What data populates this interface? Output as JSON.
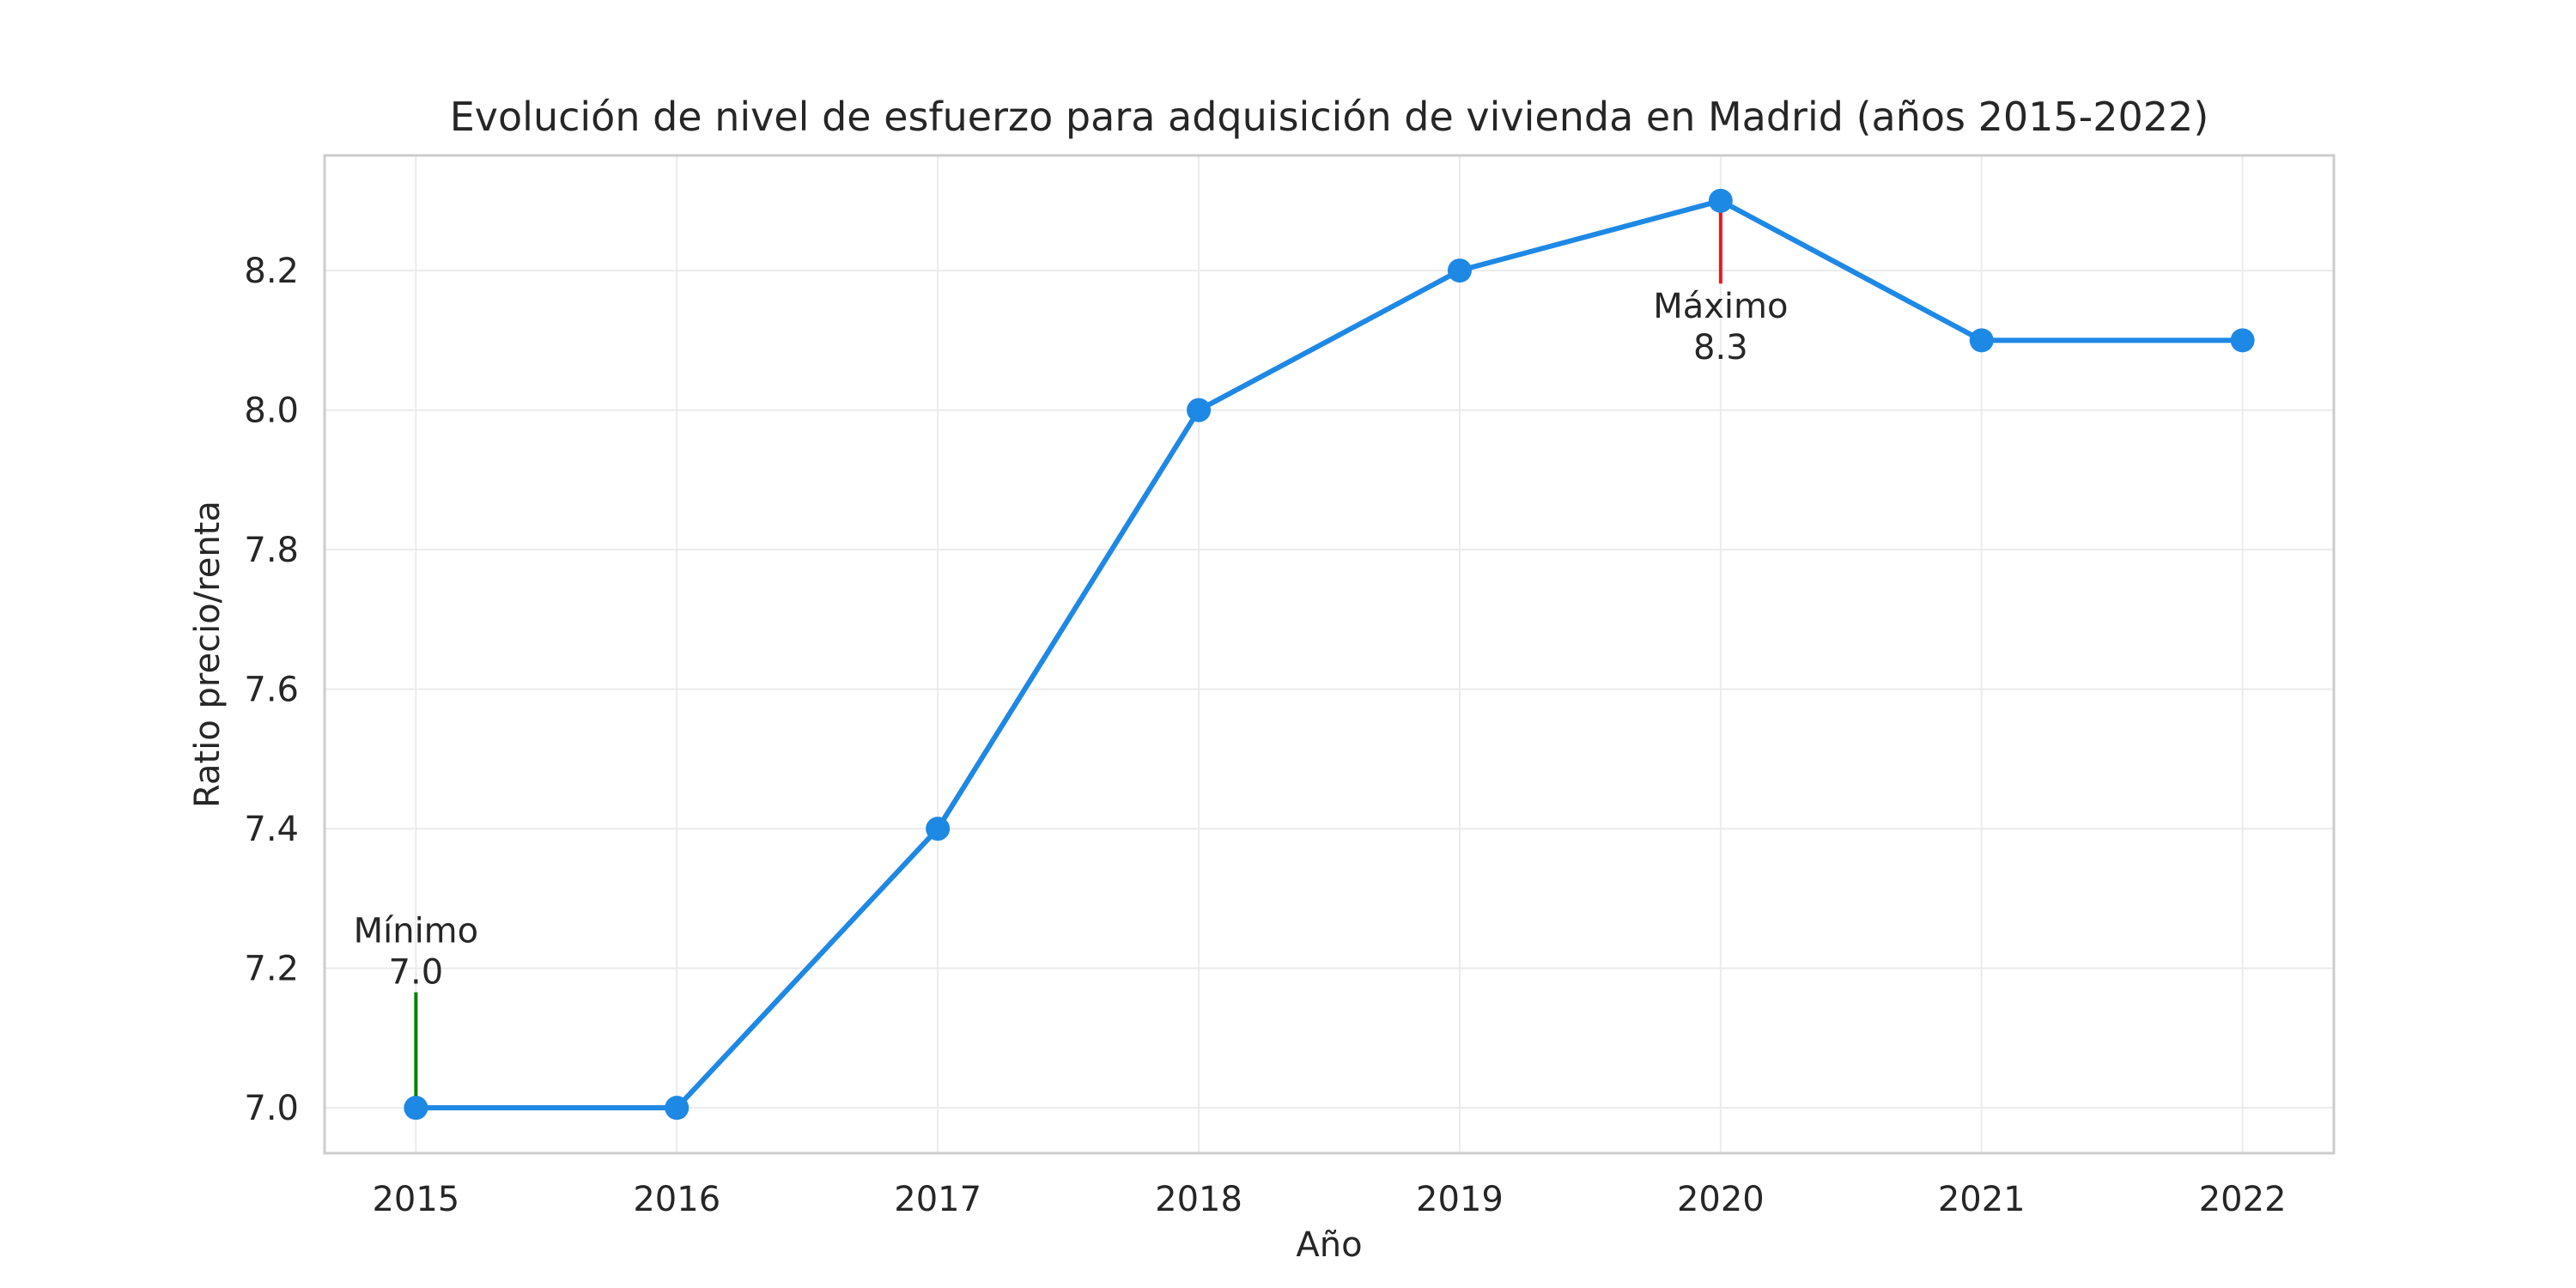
{
  "chart_data": {
    "type": "line",
    "title": "Evolución de nivel de esfuerzo para adquisición de vivienda en Madrid (años 2015-2022)",
    "xlabel": "Año",
    "ylabel": "Ratio precio/renta",
    "x": [
      2015,
      2016,
      2017,
      2018,
      2019,
      2020,
      2021,
      2022
    ],
    "y_ticks": [
      7.0,
      7.2,
      7.4,
      7.6,
      7.8,
      8.0,
      8.2
    ],
    "y_tick_labels": [
      "7.0",
      "7.2",
      "7.4",
      "7.6",
      "7.8",
      "8.0",
      "8.2"
    ],
    "series": [
      {
        "values": [
          7.0,
          7.0,
          7.4,
          8.0,
          8.2,
          8.3,
          8.1,
          8.1
        ],
        "color": "#1e88e5"
      }
    ],
    "xlim": [
      2014.65,
      2022.35
    ],
    "ylim": [
      6.935,
      8.365
    ],
    "grid": true,
    "annotations": {
      "min": {
        "label": "Mínimo",
        "value": "7.0",
        "x": 2015,
        "y": 7.0,
        "text_y": 7.2,
        "color": "#008000"
      },
      "max": {
        "label": "Máximo",
        "value": "8.3",
        "x": 2020,
        "y": 8.3,
        "text_y": 8.11,
        "color": "#e31a1c"
      }
    }
  }
}
